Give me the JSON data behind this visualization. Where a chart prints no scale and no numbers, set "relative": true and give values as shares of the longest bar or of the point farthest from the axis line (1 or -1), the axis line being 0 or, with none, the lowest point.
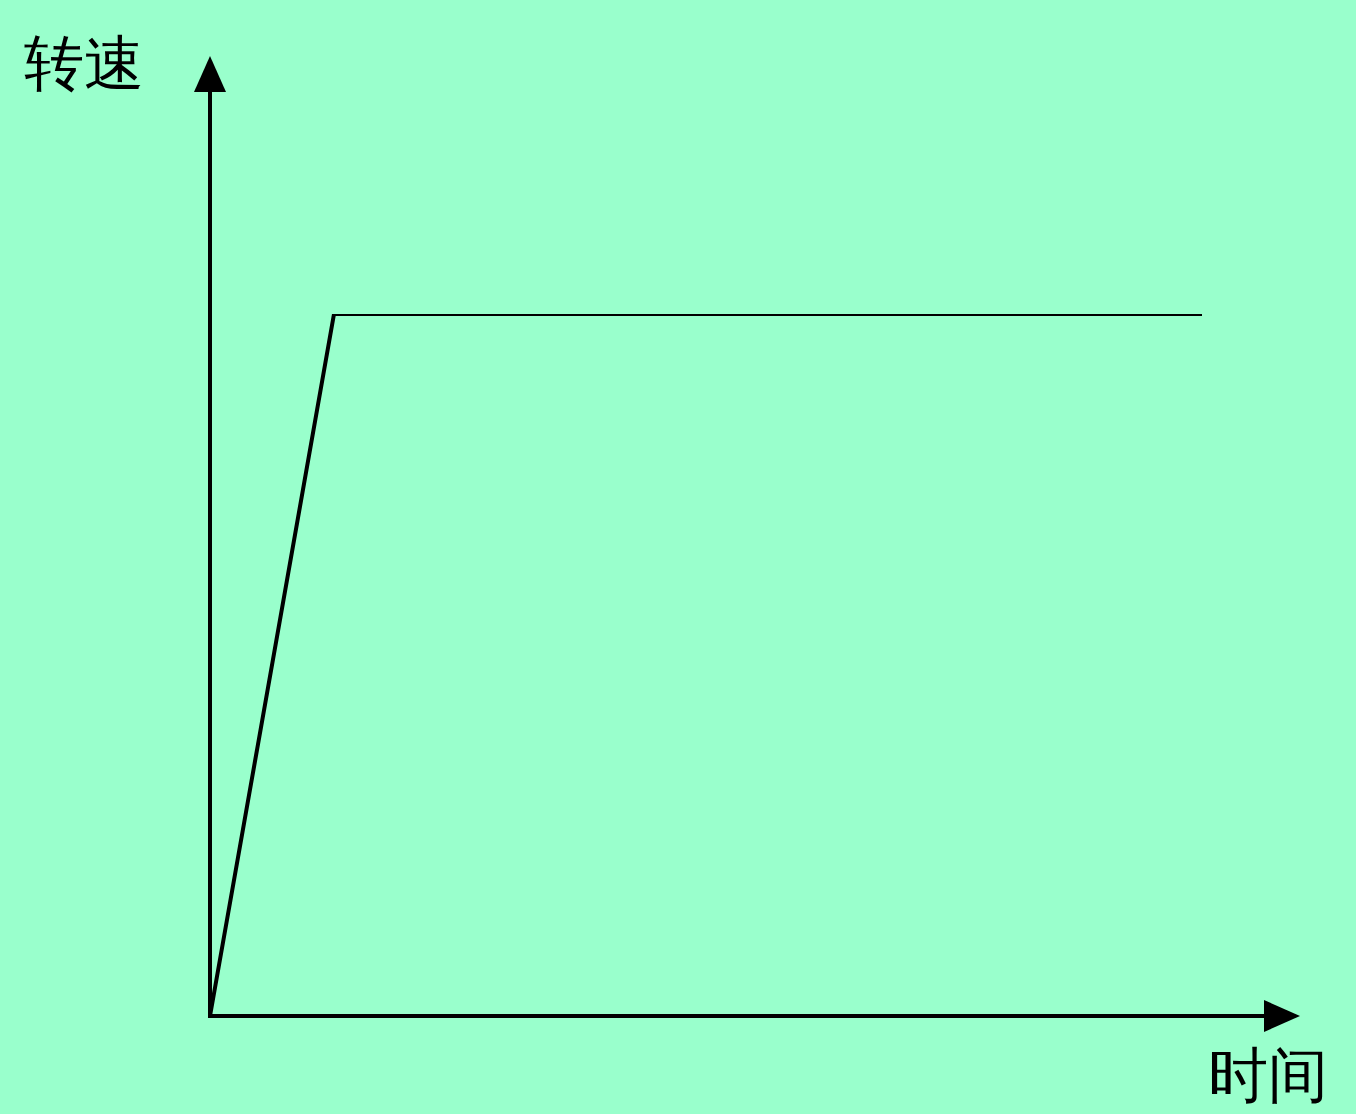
{
  "chart_data": {
    "type": "line",
    "xlabel": "时间",
    "ylabel": "转速",
    "relative": true,
    "categories": [
      null,
      null,
      null,
      null,
      null,
      null,
      null,
      null,
      null
    ],
    "values": [
      0,
      1,
      1,
      1,
      1,
      1,
      1,
      1,
      1
    ],
    "color": "#000000",
    "tick_labels": false,
    "marker": "none",
    "line_style": "solid"
  }
}
